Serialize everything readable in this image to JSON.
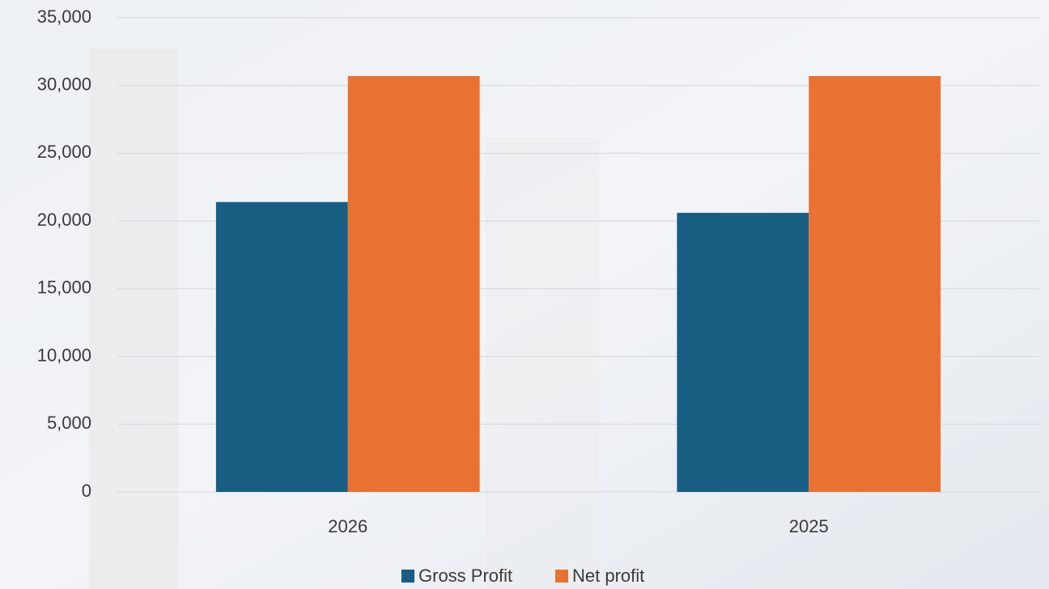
{
  "chart_data": {
    "type": "bar",
    "categories": [
      "2026",
      "2025"
    ],
    "series": [
      {
        "name": "Gross Profit",
        "color": "#175e82",
        "values": [
          21400,
          20600
        ]
      },
      {
        "name": "Net profit",
        "color": "#e97132",
        "values": [
          30700,
          30700
        ]
      }
    ],
    "ylim": [
      0,
      35000
    ],
    "yticks": [
      0,
      {
        "value": 5000,
        "label": "5,000"
      },
      {
        "value": 10000,
        "label": "10,000"
      },
      {
        "value": 15000,
        "label": "15,000"
      },
      {
        "value": 20000,
        "label": "20,000"
      },
      {
        "value": 25000,
        "label": "25,000"
      },
      {
        "value": 30000,
        "label": "30,000"
      },
      {
        "value": 35000,
        "label": "35,000"
      }
    ],
    "grid": true,
    "legend": "bottom"
  }
}
